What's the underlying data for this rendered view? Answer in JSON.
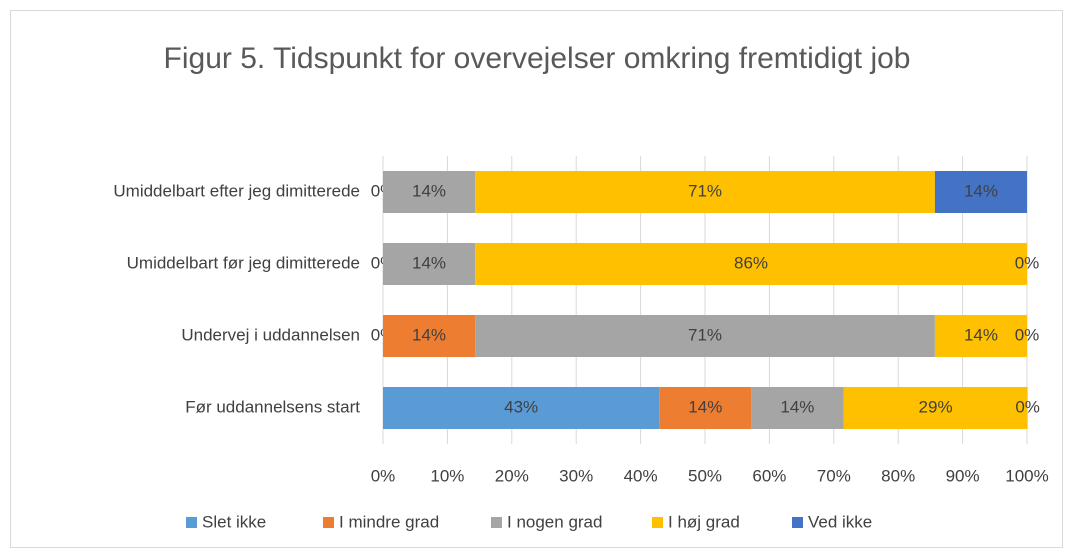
{
  "chart_data": {
    "type": "stacked_barh",
    "title": "Figur 5. Tidspunkt for overvejelser omkring fremtidigt job",
    "categories": [
      "Umiddelbart efter jeg dimitterede",
      "Umiddelbart før jeg dimitterede",
      "Undervej i uddannelsen",
      "Før uddannelsens start"
    ],
    "series": [
      {
        "name": "Slet ikke",
        "color": "#5b9bd5",
        "values": [
          0,
          0,
          0,
          42.9
        ],
        "value_labels": [
          "0%",
          "0%",
          "0%",
          "43%"
        ]
      },
      {
        "name": "I mindre grad",
        "color": "#ed7d31",
        "values": [
          0,
          0,
          14.3,
          14.3
        ],
        "value_labels": [
          null,
          null,
          "14%",
          "14%"
        ]
      },
      {
        "name": "I nogen grad",
        "color": "#a5a5a5",
        "values": [
          14.3,
          14.3,
          71.4,
          14.3
        ],
        "value_labels": [
          "14%",
          "14%",
          "71%",
          "14%"
        ]
      },
      {
        "name": "I høj grad",
        "color": "#ffc000",
        "values": [
          71.4,
          85.7,
          14.3,
          28.6
        ],
        "value_labels": [
          "71%",
          "86%",
          "14%",
          "29%"
        ]
      },
      {
        "name": "Ved ikke",
        "color": "#4472c4",
        "values": [
          14.3,
          0,
          0,
          0
        ],
        "value_labels": [
          "14%",
          "0%",
          "0%",
          "0%"
        ]
      }
    ],
    "xlim": [
      0,
      100
    ],
    "xticks": [
      {
        "value": 0,
        "label": "0%"
      },
      {
        "value": 10,
        "label": "10%"
      },
      {
        "value": 20,
        "label": "20%"
      },
      {
        "value": 30,
        "label": "30%"
      },
      {
        "value": 40,
        "label": "40%"
      },
      {
        "value": 50,
        "label": "50%"
      },
      {
        "value": 60,
        "label": "60%"
      },
      {
        "value": 70,
        "label": "70%"
      },
      {
        "value": 80,
        "label": "80%"
      },
      {
        "value": 90,
        "label": "90%"
      },
      {
        "value": 100,
        "label": "100%"
      }
    ],
    "grid": true,
    "legend": "bottom"
  }
}
